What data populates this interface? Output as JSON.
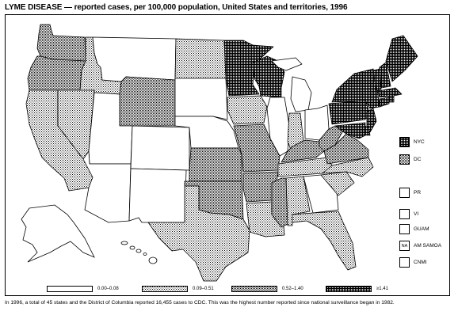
{
  "title": "LYME DISEASE — reported cases, per 100,000 population, United States and territories, 1996",
  "legend": [
    {
      "label": "0.00–0.08",
      "pattern": "white"
    },
    {
      "label": "0.09–0.51",
      "pattern": "dots"
    },
    {
      "label": "0.52–1.40",
      "pattern": "grid"
    },
    {
      "label": "≥1.41",
      "pattern": "dark"
    }
  ],
  "territories": [
    {
      "label": "NYC",
      "pattern": "dark",
      "box_text": ""
    },
    {
      "label": "DC",
      "pattern": "grid",
      "box_text": ""
    },
    {
      "label": "PR",
      "pattern": "white",
      "box_text": ""
    },
    {
      "label": "VI",
      "pattern": "white",
      "box_text": ""
    },
    {
      "label": "GUAM",
      "pattern": "white",
      "box_text": ""
    },
    {
      "label": "AM SAMOA",
      "pattern": "white",
      "box_text": "NA"
    },
    {
      "label": "CNMI",
      "pattern": "white",
      "box_text": ""
    }
  ],
  "footnote": "In 1996, a total of 45 states and the District of Columbia reported 16,455 cases to CDC. This was the highest number reported since national surveillance began in 1982.",
  "colors": {
    "ink": "#000000",
    "paper": "#ffffff"
  },
  "states": {
    "WA": "grid",
    "OR": "grid",
    "CA": "dots",
    "NV": "dots",
    "ID": "dots",
    "MT": "white",
    "WY": "grid",
    "UT": "white",
    "AZ": "white",
    "CO": "white",
    "NM": "white",
    "ND": "dots",
    "SD": "white",
    "NE": "white",
    "KS": "grid",
    "OK": "grid",
    "TX": "dots",
    "MN": "dark",
    "IA": "dots",
    "MO": "grid",
    "AR": "grid",
    "LA": "dots",
    "WI": "dark",
    "IL": "white",
    "MI": "white",
    "IN": "dots",
    "OH": "white",
    "KY": "grid",
    "TN": "dots",
    "MS": "grid",
    "AL": "dots",
    "GA": "white",
    "FL": "dots",
    "SC": "dots",
    "NC": "dots",
    "VA": "grid",
    "WV": "grid",
    "PA": "dark",
    "NY": "dark",
    "NJ": "dark",
    "DE": "dark",
    "MD": "dark",
    "CT": "dark",
    "RI": "dark",
    "MA": "dark",
    "VT": "dark",
    "NH": "dark",
    "ME": "dark",
    "AK": "white",
    "HI": "white"
  }
}
